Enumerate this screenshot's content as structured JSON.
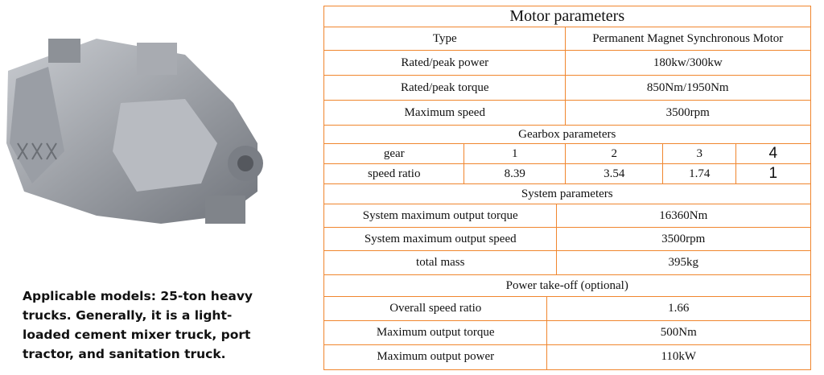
{
  "description": "Applicable models: 25-ton heavy trucks. Generally, it is a light-loaded cement mixer truck, port tractor, and sanitation truck.",
  "motor": {
    "title": "Motor parameters",
    "rows": [
      [
        "Type",
        "Permanent Magnet Synchronous Motor"
      ],
      [
        "Rated/peak power",
        "180kw/300kw"
      ],
      [
        "Rated/peak torque",
        "850Nm/1950Nm"
      ],
      [
        "Maximum speed",
        "3500rpm"
      ]
    ]
  },
  "gearbox": {
    "title": "Gearbox parameters",
    "gear": [
      "gear",
      "1",
      "2",
      "3",
      "4"
    ],
    "ratio": [
      "speed ratio",
      "8.39",
      "3.54",
      "1.74",
      "1"
    ]
  },
  "system": {
    "title": "System parameters",
    "rows": [
      [
        "System maximum output torque",
        "16360Nm"
      ],
      [
        "System maximum output speed",
        "3500rpm"
      ],
      [
        "total mass",
        "395kg"
      ]
    ]
  },
  "pto": {
    "title": "Power take-off (optional)",
    "rows": [
      [
        "Overall speed ratio",
        "1.66"
      ],
      [
        "Maximum output torque",
        "500Nm"
      ],
      [
        "Maximum output power",
        "110kW"
      ]
    ]
  },
  "colors": {
    "border": "#f0862e"
  }
}
